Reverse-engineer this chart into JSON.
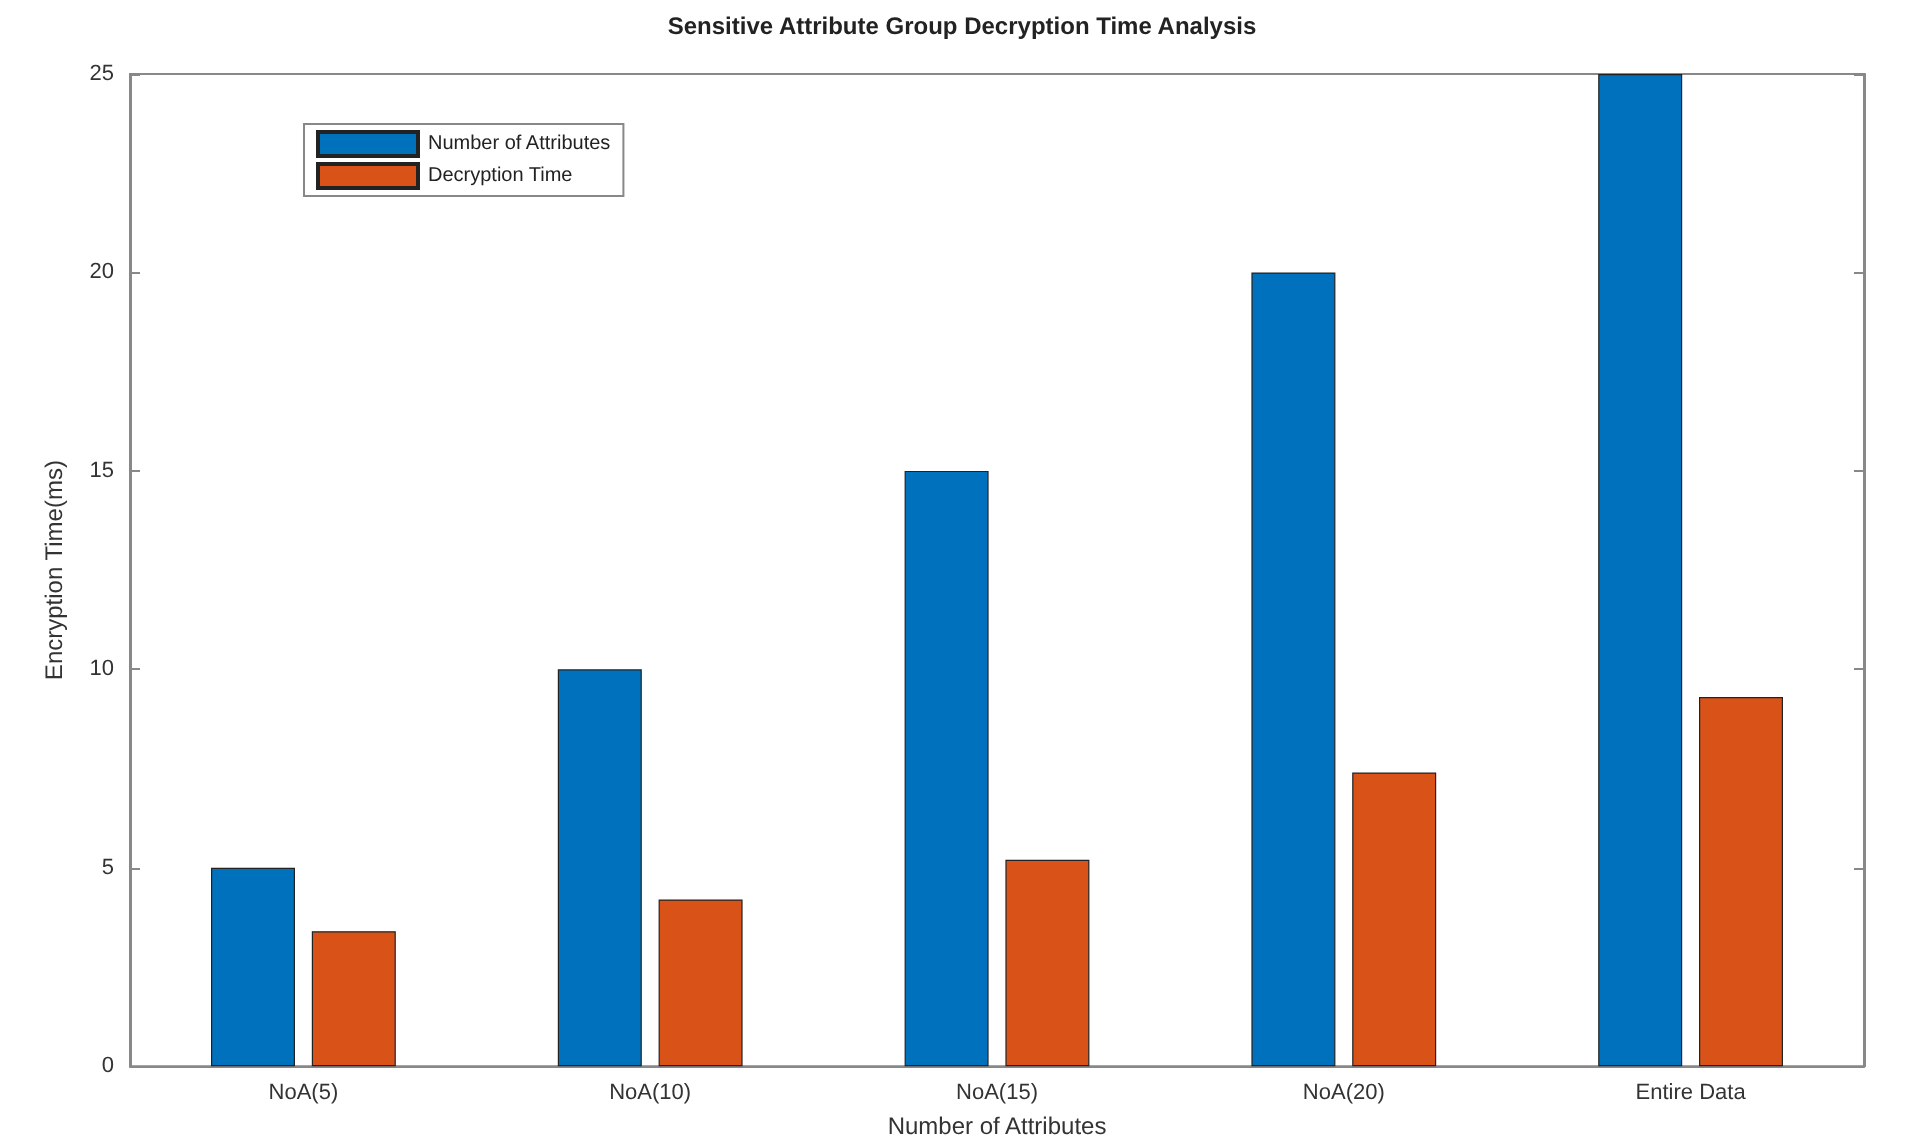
{
  "chart_data": {
    "type": "bar",
    "title": "Sensitive Attribute Group Decryption Time Analysis",
    "xlabel": "Number of Attributes",
    "ylabel": "Encryption Time(ms)",
    "categories": [
      "NoA(5)",
      "NoA(10)",
      "NoA(15)",
      "NoA(20)",
      "Entire Data"
    ],
    "series": [
      {
        "name": "Number of Attributes",
        "color": "#0072bd",
        "values": [
          5,
          10,
          15,
          20,
          25
        ]
      },
      {
        "name": "Decryption Time",
        "color": "#d95319",
        "values": [
          3.4,
          4.2,
          5.2,
          7.4,
          9.3
        ]
      }
    ],
    "ylim": [
      0,
      25
    ],
    "yticks": [
      0,
      5,
      10,
      15,
      20,
      25
    ],
    "grid": false,
    "legend": "top left"
  }
}
